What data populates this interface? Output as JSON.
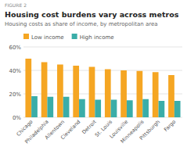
{
  "chart_data": {
    "type": "bar",
    "title": "Housing cost burdens vary across metros",
    "subtitle": "Housing costs as share of income, by metropolitan area",
    "annotations": [
      "FIGURE 2"
    ],
    "categories": [
      "Chicago",
      "Philadelphia",
      "Allentown",
      "Cleveland",
      "Detroit",
      "St. Louis",
      "Louisville",
      "Minneapolis",
      "Pittsburgh",
      "Fargo"
    ],
    "series": [
      {
        "name": "Low income",
        "color": "#F5A623",
        "values": [
          50,
          47,
          45,
          44,
          43,
          41,
          40,
          39.5,
          38.5,
          36
        ]
      },
      {
        "name": "High income",
        "color": "#3AADA8",
        "values": [
          18,
          17.5,
          17.5,
          15.5,
          15,
          15,
          14.5,
          15.5,
          14,
          14
        ]
      }
    ],
    "ylim": [
      0,
      60
    ],
    "yticks": [
      {
        "value": 0,
        "label": "0%"
      },
      {
        "value": 20,
        "label": "20%"
      },
      {
        "value": 40,
        "label": "40%"
      },
      {
        "value": 60,
        "label": "60%"
      }
    ],
    "grid": true,
    "legend": "upper left"
  }
}
